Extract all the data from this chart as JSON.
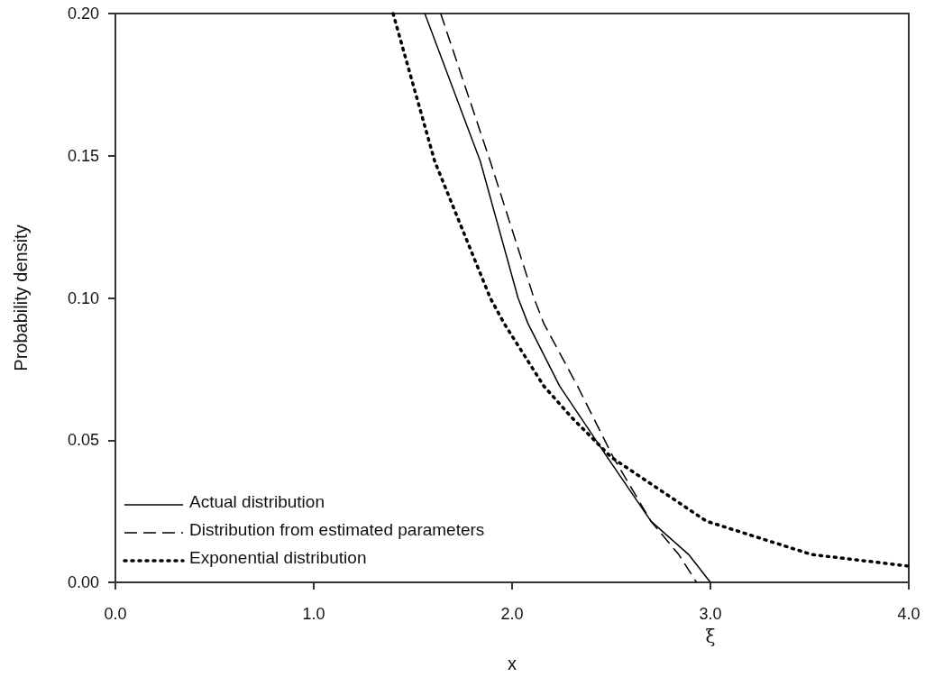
{
  "chart_data": {
    "type": "line",
    "xlabel": "x",
    "ylabel": "Probability density",
    "xlim": [
      0,
      4
    ],
    "xticks": [
      {
        "value": 0,
        "label": "0.0"
      },
      {
        "value": 1,
        "label": "1.0"
      },
      {
        "value": 2,
        "label": "2.0"
      },
      {
        "value": 3,
        "label": "3.0"
      },
      {
        "value": 4,
        "label": "4.0"
      }
    ],
    "ylim": [
      0,
      0.2
    ],
    "yticks": [
      {
        "value": 0,
        "label": "0.00"
      },
      {
        "value": 0.05,
        "label": "0.05"
      },
      {
        "value": 0.1,
        "label": "0.10"
      },
      {
        "value": 0.15,
        "label": "0.15"
      },
      {
        "value": 0.2,
        "label": "0.20"
      }
    ],
    "grid": false,
    "legend": "bottom left",
    "marker": "none",
    "annotations": [
      {
        "text": "ξ",
        "x": 3.0,
        "y": 0
      }
    ],
    "series": [
      {
        "name": "Actual distribution",
        "color": "#000000",
        "line_style": "solid",
        "x": [
          1.56,
          1.84,
          2.03,
          2.08,
          2.24,
          2.48,
          2.7,
          2.89,
          3.0
        ],
        "values": [
          0.2,
          0.148,
          0.1,
          0.091,
          0.069,
          0.044,
          0.0215,
          0.0098,
          0
        ]
      },
      {
        "name": "Distribution from estimated parameters",
        "color": "#000000",
        "line_style": "dashed",
        "x": [
          1.64,
          1.89,
          2.11,
          2.16,
          2.33,
          2.51,
          2.7,
          2.84,
          2.93
        ],
        "values": [
          0.2,
          0.148,
          0.1,
          0.091,
          0.069,
          0.044,
          0.0215,
          0.0098,
          0
        ]
      },
      {
        "name": "Exponential distribution",
        "color": "#000000",
        "line_style": "dotted",
        "x": [
          1.4,
          1.61,
          1.89,
          1.96,
          2.16,
          2.3,
          2.5,
          2.98,
          3.51,
          4.0
        ],
        "values": [
          0.2,
          0.148,
          0.1,
          0.091,
          0.069,
          0.058,
          0.044,
          0.0215,
          0.0098,
          0.0057
        ]
      }
    ]
  }
}
